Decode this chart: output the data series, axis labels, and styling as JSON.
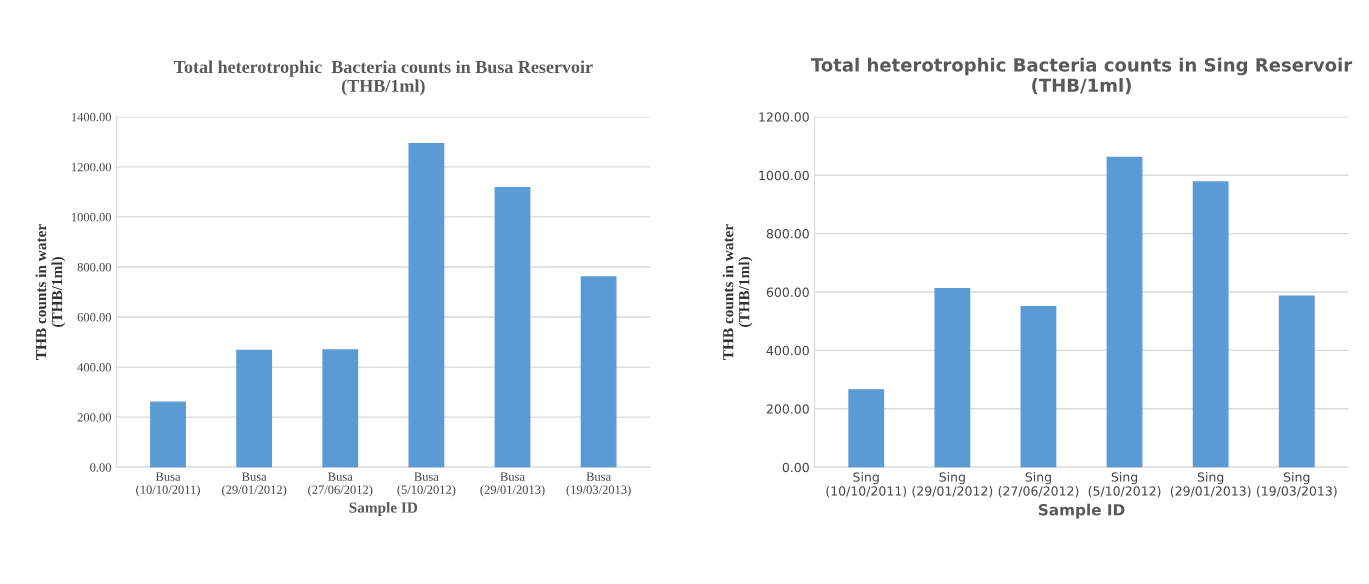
{
  "chart_data": [
    {
      "type": "bar",
      "title": "Total heterotrophic  Bacteria counts in Busa Reservoir\n(THB/1ml)",
      "xlabel": "Sample ID",
      "ylabel": "THB counts in water\n(THB/1ml)",
      "categories": [
        "Busa\n(10/10/2011)",
        "Busa\n(29/01/2012)",
        "Busa\n(27/06/2012)",
        "Busa\n(5/10/2012)",
        "Busa\n(29/01/2013)",
        "Busa\n(19/03/2013)"
      ],
      "values": [
        260,
        466,
        468,
        1293,
        1117,
        760
      ],
      "color": "#5b9bd5",
      "ylim": [
        0,
        1400
      ],
      "yticks": [
        {
          "value": 0,
          "label": "0.00"
        },
        {
          "value": 200,
          "label": "200.00"
        },
        {
          "value": 400,
          "label": "400.00"
        },
        {
          "value": 600,
          "label": "600.00"
        },
        {
          "value": 800,
          "label": "800.00"
        },
        {
          "value": 1000,
          "label": "1000.00"
        },
        {
          "value": 1200,
          "label": "1200.00"
        },
        {
          "value": 1400,
          "label": "1400.00"
        }
      ],
      "grid": "y",
      "legend": false
    },
    {
      "type": "bar",
      "title": "Total heterotrophic Bacteria counts in Sing Reservoir\n(THB/1ml)",
      "xlabel": "Sample ID",
      "ylabel": "THB counts in water\n(THB/1ml)",
      "categories": [
        "Sing\n(10/10/2011)",
        "Sing\n(29/01/2012)",
        "Sing\n(27/06/2012)",
        "Sing\n(5/10/2012)",
        "Sing\n(29/01/2013)",
        "Sing\n(19/03/2013)"
      ],
      "values": [
        265,
        611,
        550,
        1061,
        977,
        586
      ],
      "color": "#5b9bd5",
      "ylim": [
        0,
        1200
      ],
      "yticks": [
        {
          "value": 0,
          "label": "0.00"
        },
        {
          "value": 200,
          "label": "200.00"
        },
        {
          "value": 400,
          "label": "400.00"
        },
        {
          "value": 600,
          "label": "600.00"
        },
        {
          "value": 800,
          "label": "800.00"
        },
        {
          "value": 1000,
          "label": "1000.00"
        },
        {
          "value": 1200,
          "label": "1200.00"
        }
      ],
      "grid": "y",
      "legend": false
    }
  ]
}
